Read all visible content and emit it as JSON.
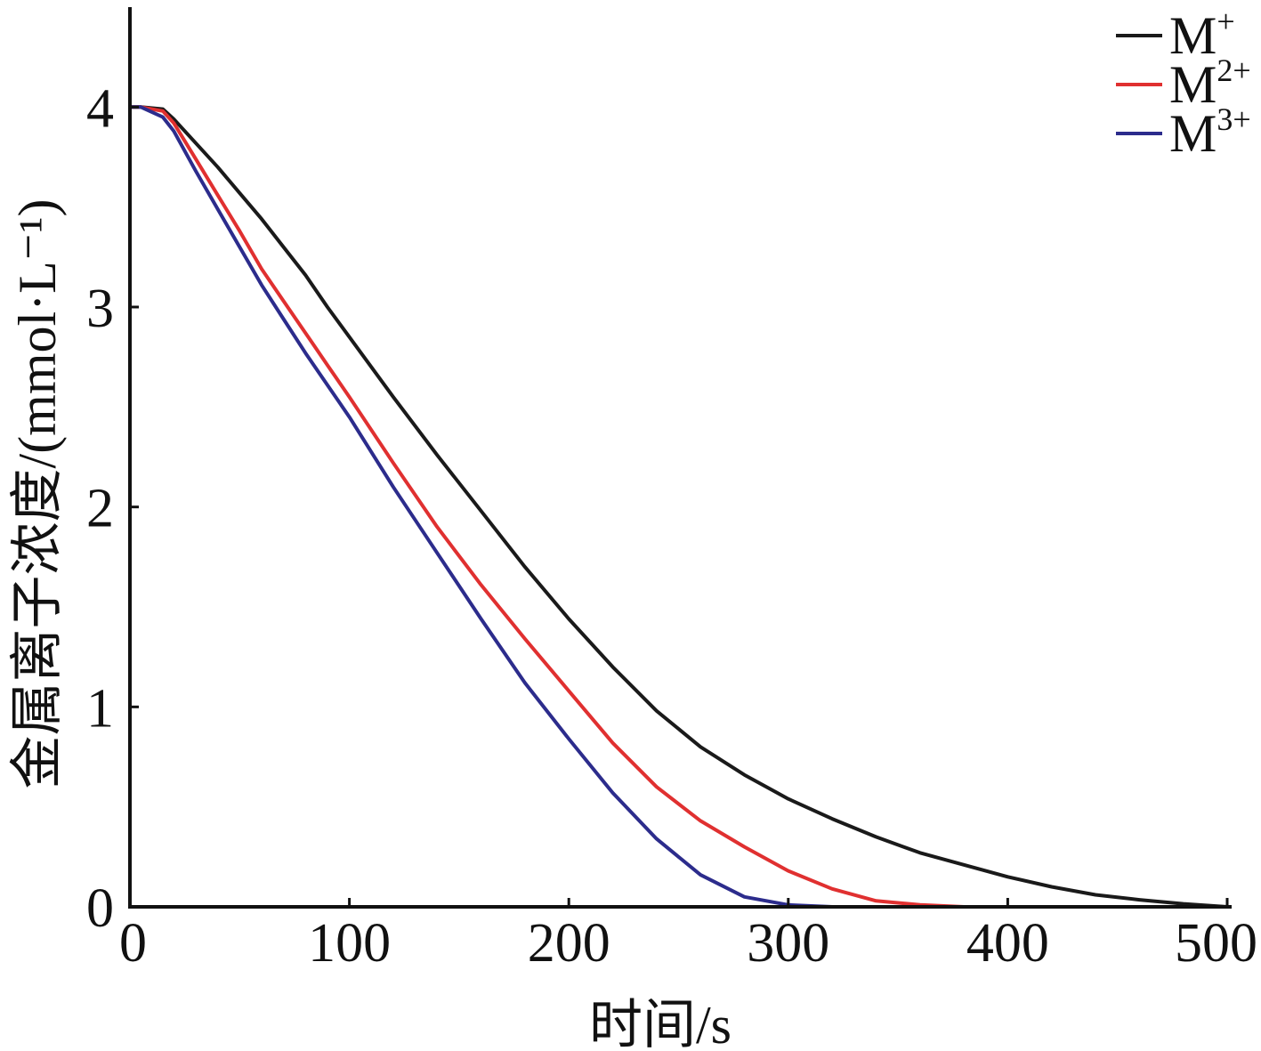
{
  "chart_data": {
    "type": "line",
    "xlabel": "时间/s",
    "ylabel": "金属离子浓度/(mmol·L⁻¹)",
    "xlim": [
      0,
      500
    ],
    "ylim": [
      0,
      4.5
    ],
    "xticks": [
      0,
      100,
      200,
      300,
      400,
      500
    ],
    "yticks": [
      0,
      1,
      2,
      3,
      4
    ],
    "xtick_labels": [
      "0",
      "100",
      "200",
      "300",
      "400",
      "500"
    ],
    "ytick_labels": [
      "0",
      "1",
      "2",
      "3",
      "4"
    ],
    "grid": false,
    "legend_position": "top-right",
    "series": [
      {
        "name": "M+",
        "legend_base": "M",
        "legend_sup": "+",
        "color": "#1a1a1a",
        "x": [
          0,
          5,
          15,
          20,
          30,
          40,
          50,
          60,
          70,
          80,
          90,
          100,
          120,
          140,
          160,
          180,
          200,
          220,
          240,
          260,
          280,
          300,
          320,
          340,
          360,
          380,
          400,
          420,
          440,
          460,
          480,
          500
        ],
        "y": [
          4.0,
          4.0,
          3.99,
          3.94,
          3.82,
          3.7,
          3.57,
          3.44,
          3.3,
          3.16,
          3.0,
          2.85,
          2.55,
          2.26,
          1.98,
          1.7,
          1.44,
          1.2,
          0.98,
          0.8,
          0.66,
          0.54,
          0.44,
          0.35,
          0.27,
          0.21,
          0.15,
          0.1,
          0.06,
          0.035,
          0.015,
          0.0
        ]
      },
      {
        "name": "M2+",
        "legend_base": "M",
        "legend_sup": "2+",
        "color": "#e03030",
        "x": [
          0,
          5,
          15,
          20,
          30,
          40,
          50,
          60,
          70,
          80,
          90,
          100,
          120,
          140,
          160,
          180,
          200,
          220,
          240,
          260,
          280,
          300,
          320,
          340,
          360,
          380
        ],
        "y": [
          4.0,
          4.0,
          3.98,
          3.92,
          3.74,
          3.56,
          3.38,
          3.19,
          3.03,
          2.87,
          2.71,
          2.55,
          2.22,
          1.9,
          1.61,
          1.34,
          1.08,
          0.82,
          0.6,
          0.43,
          0.3,
          0.18,
          0.09,
          0.03,
          0.01,
          0.0
        ]
      },
      {
        "name": "M3+",
        "legend_base": "M",
        "legend_sup": "3+",
        "color": "#2c2c8c",
        "x": [
          0,
          5,
          15,
          20,
          30,
          40,
          50,
          60,
          70,
          80,
          90,
          100,
          120,
          140,
          160,
          180,
          200,
          220,
          240,
          260,
          280,
          300,
          320
        ],
        "y": [
          4.0,
          4.0,
          3.95,
          3.88,
          3.68,
          3.49,
          3.3,
          3.11,
          2.94,
          2.77,
          2.61,
          2.45,
          2.1,
          1.77,
          1.44,
          1.12,
          0.84,
          0.57,
          0.34,
          0.16,
          0.05,
          0.01,
          0.0
        ]
      }
    ]
  }
}
